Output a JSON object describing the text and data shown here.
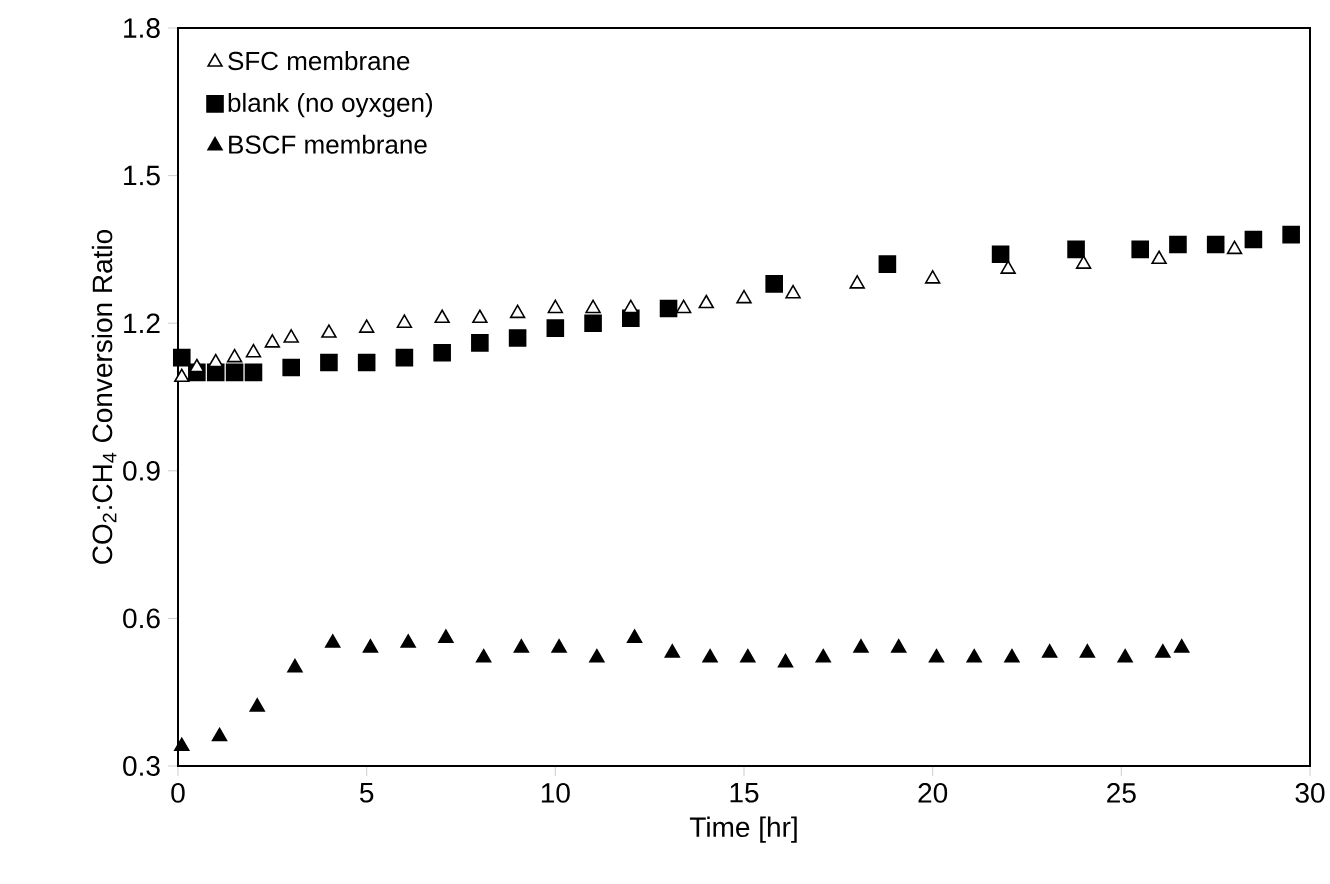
{
  "chart_data": {
    "type": "scatter",
    "xlabel": "Time [hr]",
    "ylabel": "CO$_{2}$:CH$_{4}$ Conversion Ratio",
    "xlim": [
      0,
      30
    ],
    "xticks": [
      0,
      5,
      10,
      15,
      20,
      25,
      30
    ],
    "ylim": [
      0.3,
      1.8
    ],
    "yticks": [
      0.3,
      0.6,
      0.9,
      1.2,
      1.5,
      1.8
    ],
    "legend": "top left",
    "grid": false,
    "series": [
      {
        "name": "SFC membrane",
        "color": "#ffffff",
        "marker": "triangle",
        "x": [
          0.1,
          0.5,
          1,
          1.5,
          2,
          2.5,
          3,
          4,
          5,
          6,
          7,
          8,
          9,
          10,
          11,
          12,
          13.4,
          14,
          15,
          16.3,
          18,
          20,
          22,
          24,
          26,
          28
        ],
        "values": [
          1.09,
          1.11,
          1.12,
          1.13,
          1.14,
          1.16,
          1.17,
          1.18,
          1.19,
          1.2,
          1.21,
          1.21,
          1.22,
          1.23,
          1.23,
          1.23,
          1.23,
          1.24,
          1.25,
          1.26,
          1.28,
          1.29,
          1.31,
          1.32,
          1.33,
          1.35
        ]
      },
      {
        "name": "blank (no oyxgen)",
        "color": "#000000",
        "marker": "square",
        "x": [
          0.1,
          0.5,
          1,
          1.5,
          2,
          3,
          4,
          5,
          6,
          7,
          8,
          9,
          10,
          11,
          12,
          13,
          15.8,
          18.8,
          21.8,
          23.8,
          25.5,
          26.5,
          27.5,
          28.5,
          29.5
        ],
        "values": [
          1.13,
          1.1,
          1.1,
          1.1,
          1.1,
          1.11,
          1.12,
          1.12,
          1.13,
          1.14,
          1.16,
          1.17,
          1.19,
          1.2,
          1.21,
          1.23,
          1.28,
          1.32,
          1.34,
          1.35,
          1.35,
          1.36,
          1.36,
          1.37,
          1.38
        ]
      },
      {
        "name": "BSCF membrane",
        "color": "#000000",
        "marker": "triangle",
        "x": [
          0.1,
          1.1,
          2.1,
          3.1,
          4.1,
          5.1,
          6.1,
          7.1,
          8.1,
          9.1,
          10.1,
          11.1,
          12.1,
          13.1,
          14.1,
          15.1,
          16.1,
          17.1,
          18.1,
          19.1,
          20.1,
          21.1,
          22.1,
          23.1,
          24.1,
          25.1,
          26.1,
          26.6
        ],
        "values": [
          0.34,
          0.36,
          0.42,
          0.5,
          0.55,
          0.54,
          0.55,
          0.56,
          0.52,
          0.54,
          0.54,
          0.52,
          0.56,
          0.53,
          0.52,
          0.52,
          0.51,
          0.52,
          0.54,
          0.54,
          0.52,
          0.52,
          0.52,
          0.53,
          0.53,
          0.52,
          0.53,
          0.54
        ]
      }
    ]
  }
}
